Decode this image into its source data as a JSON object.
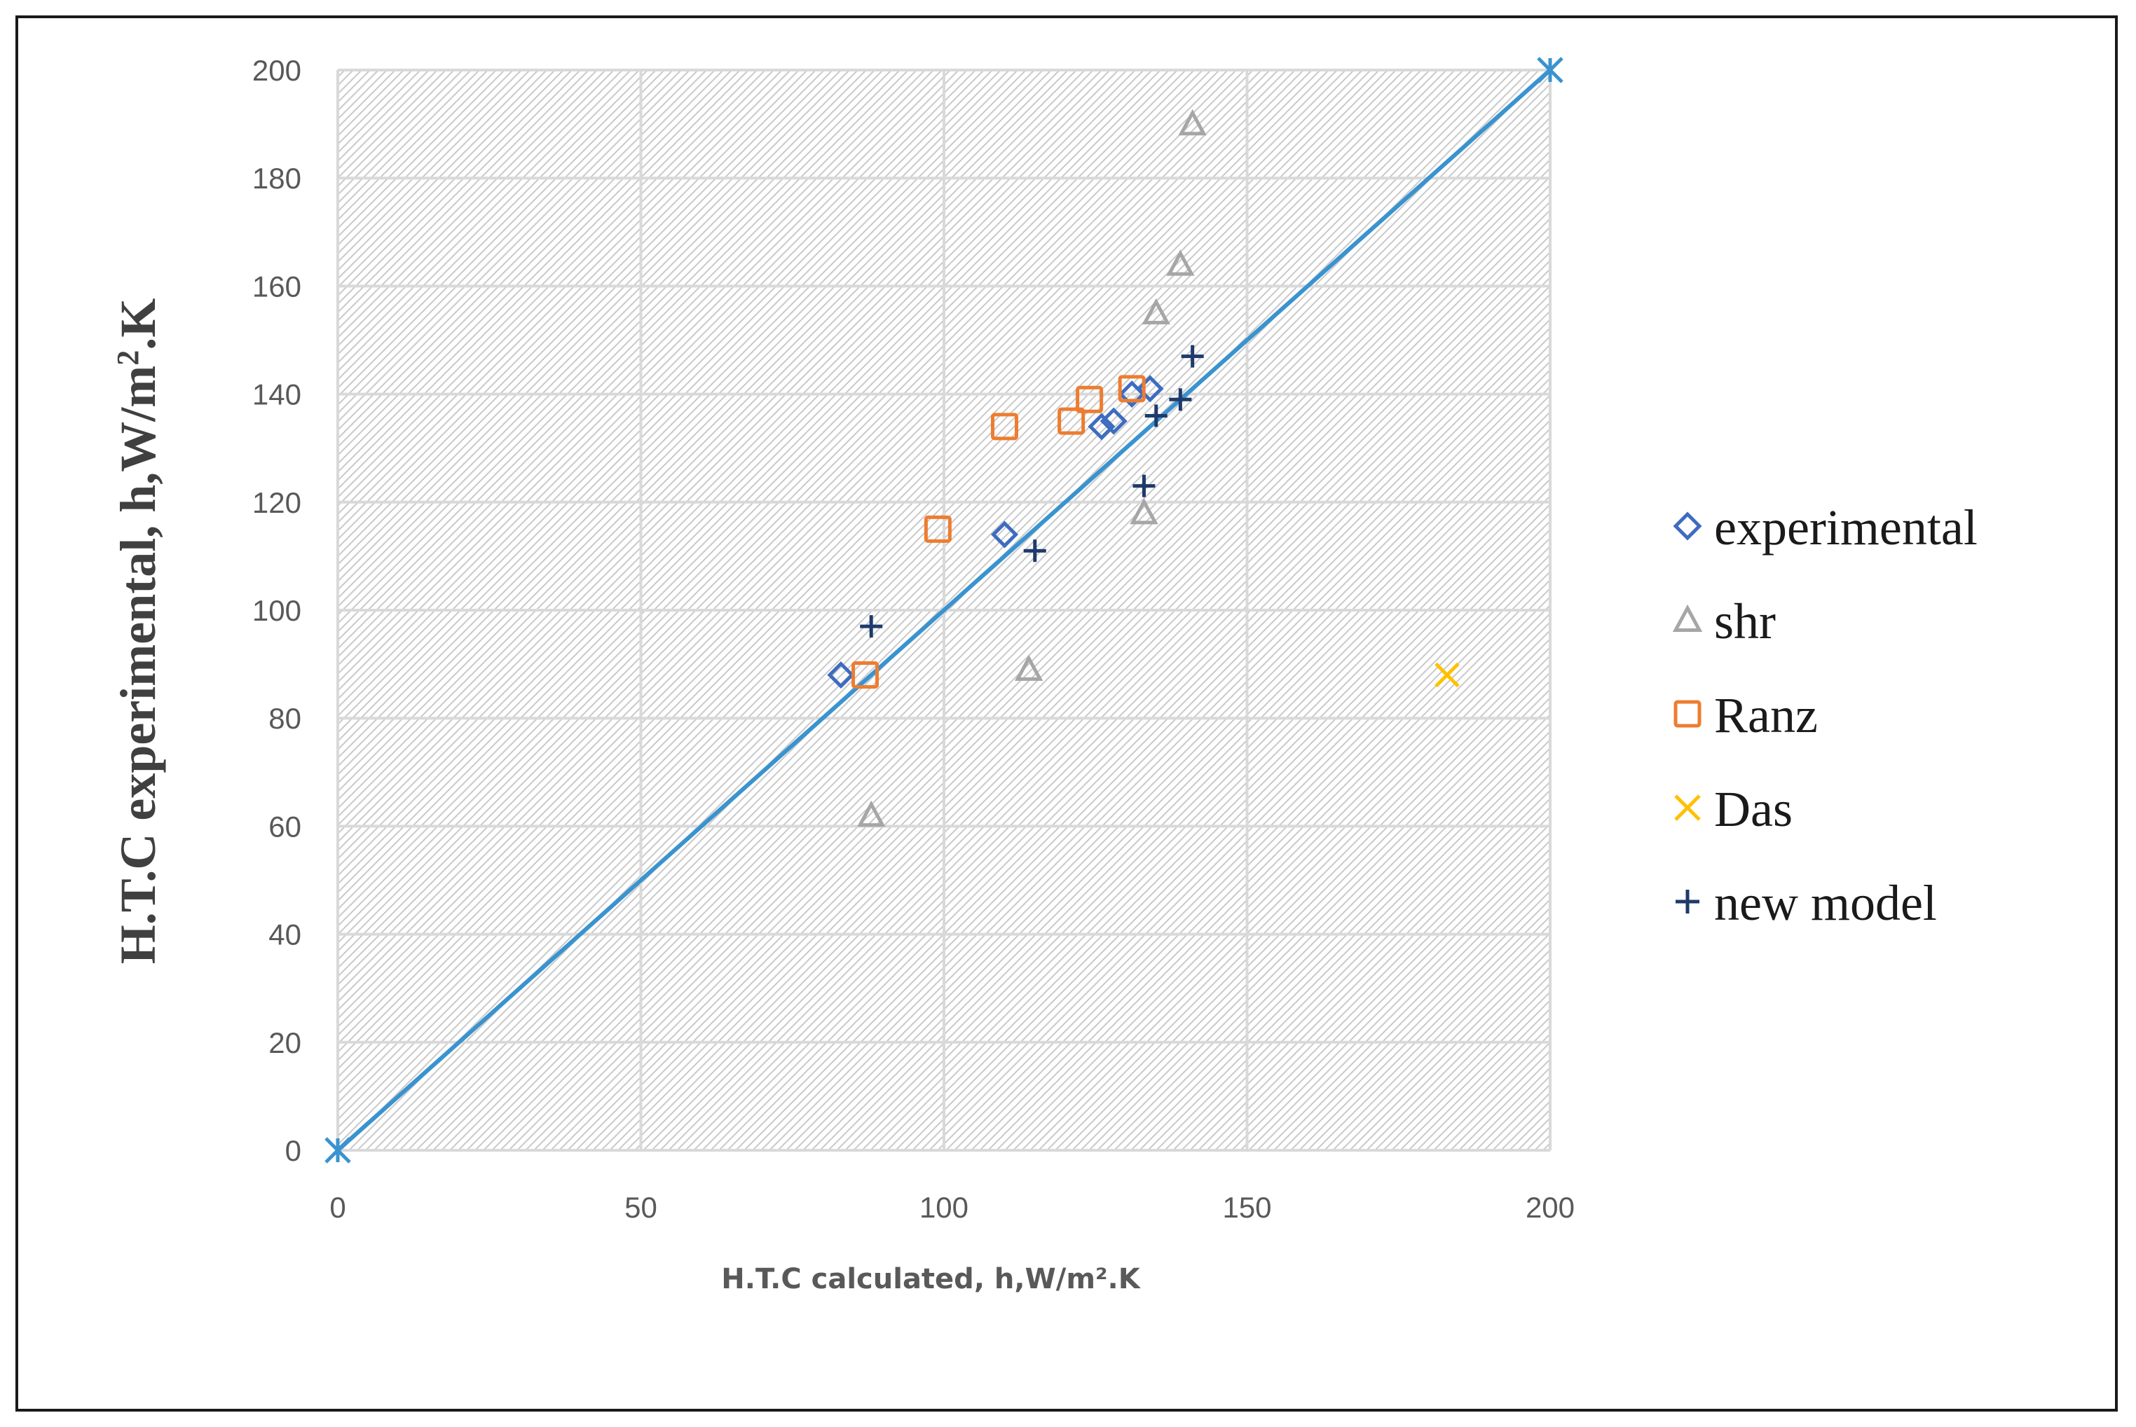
{
  "chart_data": {
    "type": "scatter",
    "title": "",
    "xlabel": "H.T.C calculated, h,W/m².K",
    "ylabel_main": "H.T.C experimental,  h,W/m",
    "ylabel_sup": "2",
    "ylabel_tail": ".K",
    "xlim": [
      0,
      200
    ],
    "ylim": [
      0,
      200
    ],
    "xticks": [
      0,
      50,
      100,
      150,
      200
    ],
    "yticks": [
      0,
      20,
      40,
      60,
      80,
      100,
      120,
      140,
      160,
      180,
      200
    ],
    "grid": true,
    "legend_position": "right",
    "reference_line": {
      "points": [
        [
          0,
          0
        ],
        [
          200,
          200
        ]
      ],
      "color": "#3a93cf",
      "marker": "asterisk"
    },
    "series": [
      {
        "name": "experimental",
        "marker": "diamond",
        "color": "#3d6cc0",
        "points": [
          [
            83,
            88
          ],
          [
            110,
            114
          ],
          [
            126,
            134
          ],
          [
            128,
            135
          ],
          [
            131,
            140
          ],
          [
            134,
            141
          ]
        ]
      },
      {
        "name": "shr",
        "marker": "triangle",
        "color": "#a6a6a6",
        "points": [
          [
            88,
            62
          ],
          [
            114,
            89
          ],
          [
            133,
            118
          ],
          [
            135,
            155
          ],
          [
            139,
            164
          ],
          [
            141,
            190
          ]
        ]
      },
      {
        "name": "Ranz",
        "marker": "square",
        "color": "#ed7d31",
        "points": [
          [
            87,
            88
          ],
          [
            99,
            115
          ],
          [
            110,
            134
          ],
          [
            121,
            135
          ],
          [
            124,
            139
          ],
          [
            131,
            141
          ]
        ]
      },
      {
        "name": "Das",
        "marker": "x",
        "color": "#ffc000",
        "points": [
          [
            183,
            88
          ]
        ]
      },
      {
        "name": "new model",
        "marker": "plus",
        "color": "#1f3a6b",
        "points": [
          [
            88,
            97
          ],
          [
            115,
            111
          ],
          [
            133,
            123
          ],
          [
            135,
            136
          ],
          [
            139,
            139
          ],
          [
            141,
            147
          ]
        ]
      }
    ]
  }
}
